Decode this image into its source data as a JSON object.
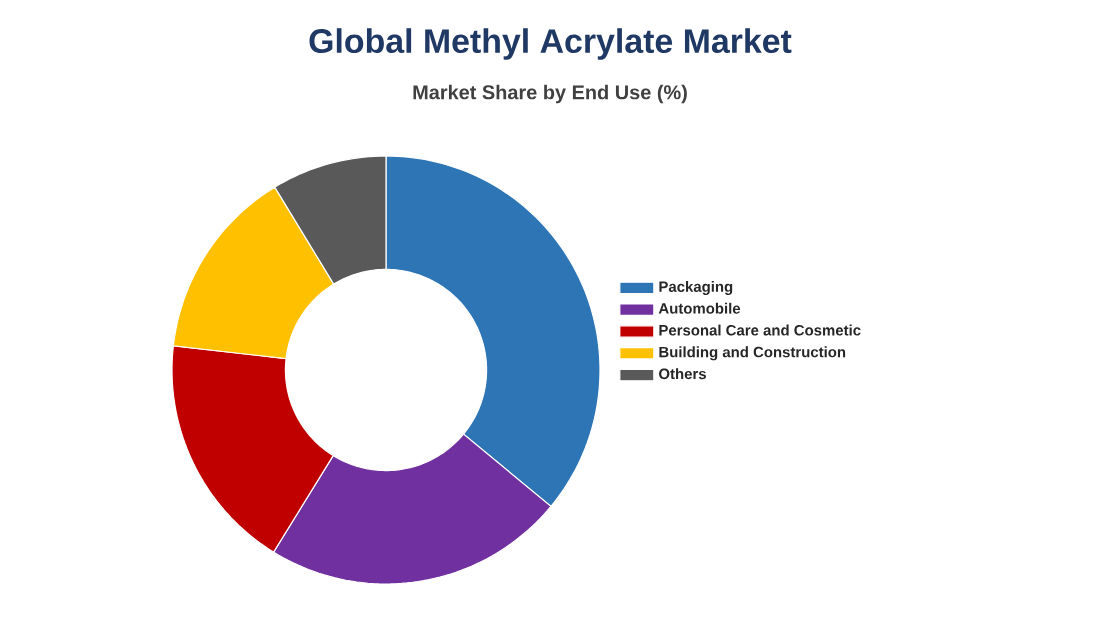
{
  "chart_data": {
    "type": "donut",
    "title": "Global Methyl Acrylate Market",
    "subtitle": "Market Share by End Use (%)",
    "categories": [
      "Packaging",
      "Automobile",
      "Personal Care and Cosmetic",
      "Building and Construction",
      "Others"
    ],
    "values": [
      36,
      22.8,
      18,
      14.5,
      8.7
    ],
    "colors": [
      "#2e75b6",
      "#7030a0",
      "#c00000",
      "#ffc000",
      "#595959"
    ],
    "legend": "right"
  }
}
